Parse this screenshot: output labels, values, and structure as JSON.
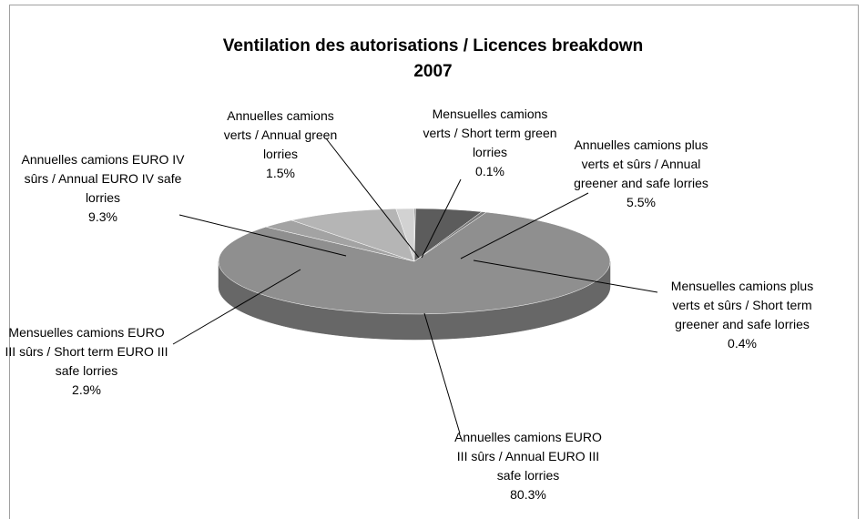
{
  "chart_data": {
    "type": "pie3d",
    "title": [
      "Ventilation des autorisations / Licences breakdown",
      "2007"
    ],
    "categories": [
      "Mensuelles camions verts /  Short term green lorries",
      "Annuelles camions plus verts et sûrs / Annual greener and safe lorries",
      "Mensuelles camions plus verts et sûrs / Short term greener and safe lorries",
      "Annuelles camions EURO III sûrs / Annual EURO III safe lorries",
      "Mensuelles camions EURO III sûrs / Short term EURO III safe lorries",
      "Annuelles camions EURO IV sûrs / Annual EURO IV safe lorries",
      "Annuelles camions verts /  Annual green lorries"
    ],
    "values": [
      0.1,
      5.5,
      0.4,
      80.3,
      2.9,
      9.3,
      1.5
    ],
    "value_labels": [
      "0.1%",
      "5.5%",
      "0.4%",
      "80.3%",
      "2.9%",
      "9.3%",
      "1.5%"
    ],
    "colors": [
      "#6e6e6e",
      "#5c5c5c",
      "#7a7a7a",
      "#8f8f8f",
      "#a3a3a3",
      "#b5b5b5",
      "#d2d2d2"
    ]
  }
}
